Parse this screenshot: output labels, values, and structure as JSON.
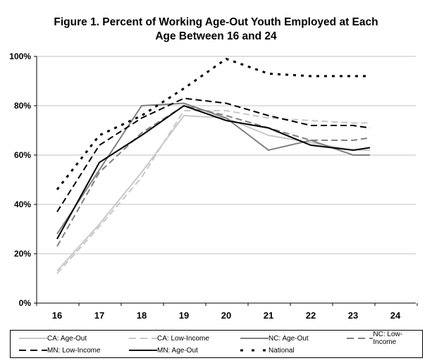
{
  "chart_data": {
    "type": "line",
    "title": "Figure 1. Percent of Working Age-Out Youth Employed at Each Age Between 16 and 24",
    "title_lines": [
      "Figure 1. Percent of Working Age-Out Youth Employed at Each",
      "Age Between 16 and 24"
    ],
    "xlabel": "",
    "ylabel": "",
    "categories": [
      "16",
      "17",
      "18",
      "19",
      "20",
      "21",
      "22",
      "23",
      "24"
    ],
    "y_ticks": [
      "0%",
      "20%",
      "40%",
      "60%",
      "80%",
      "100%"
    ],
    "ylim": [
      0,
      100
    ],
    "grid": "horizontal",
    "legend_position": "bottom",
    "point_x": [
      16,
      17,
      18,
      19,
      20,
      21,
      22,
      23,
      23.4
    ],
    "series": [
      {
        "name": "CA: Age-Out",
        "color": "#c8c8c8",
        "dash": "solid",
        "values": [
          13,
          32,
          53,
          76,
          75,
          68,
          65,
          62,
          62
        ]
      },
      {
        "name": "CA: Low-Income",
        "color": "#c8c8c8",
        "dash": "dashed",
        "values": [
          12,
          31,
          51,
          78,
          78,
          75,
          74,
          73,
          73
        ]
      },
      {
        "name": "NC: Age-Out",
        "color": "#808080",
        "dash": "solid",
        "values": [
          28,
          54,
          80,
          81,
          75,
          62,
          66,
          60,
          60
        ]
      },
      {
        "name": "NC: Low-Income",
        "color": "#808080",
        "dash": "dashed",
        "values": [
          23,
          53,
          69,
          80,
          76,
          71,
          66,
          66,
          67
        ]
      },
      {
        "name": "MN: Low-Income",
        "color": "#000000",
        "dash": "dashed",
        "values": [
          37,
          64,
          75,
          83,
          81,
          76,
          72,
          72,
          71
        ]
      },
      {
        "name": "MN: Age-Out",
        "color": "#000000",
        "dash": "solid",
        "values": [
          26,
          57,
          68,
          80,
          74,
          71,
          64,
          62,
          63
        ]
      },
      {
        "name": "National",
        "color": "#000000",
        "dash": "dotted",
        "values": [
          46,
          68,
          76,
          87,
          99,
          93,
          92,
          92,
          92
        ]
      }
    ]
  }
}
